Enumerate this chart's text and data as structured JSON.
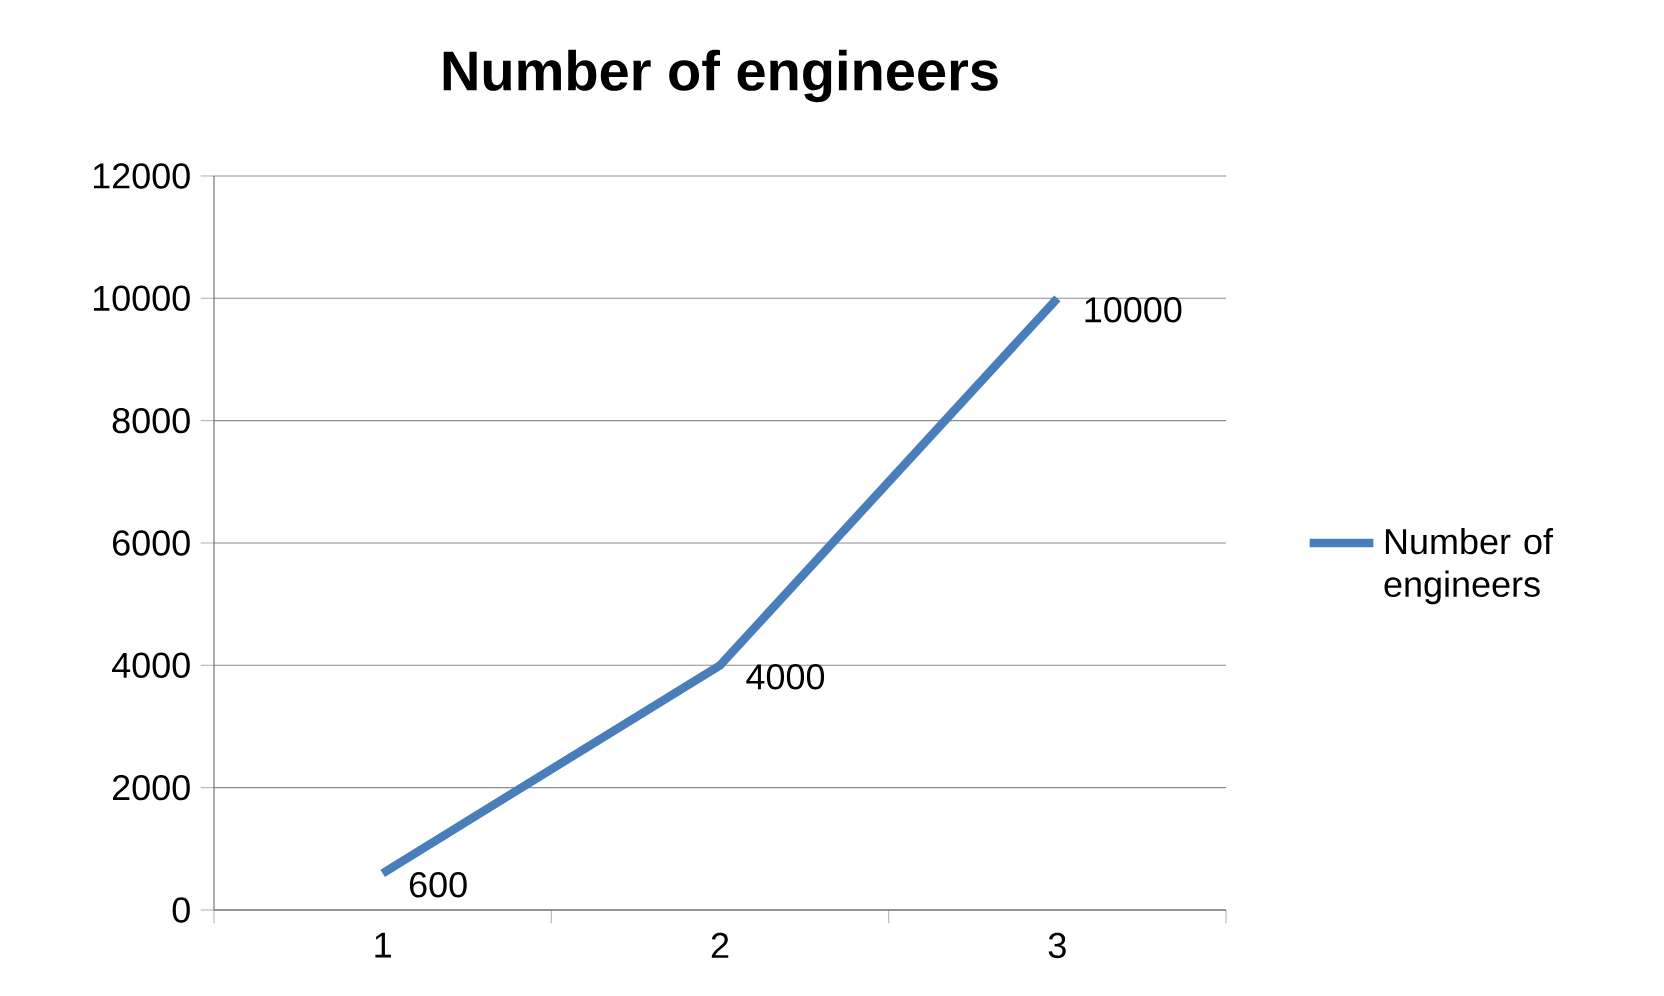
{
  "chart_data": {
    "type": "line",
    "title": "Number of engineers",
    "categories": [
      "1",
      "2",
      "3"
    ],
    "series": [
      {
        "name": "Number of engineers",
        "color": "#4a7ebb",
        "values": [
          600,
          4000,
          10000
        ]
      }
    ],
    "ylim": [
      0,
      12000
    ],
    "yticks": [
      0,
      2000,
      4000,
      6000,
      8000,
      10000,
      12000
    ],
    "grid": "y",
    "legend": "right",
    "data_labels": true,
    "marker": "none",
    "line_style": "solid"
  }
}
